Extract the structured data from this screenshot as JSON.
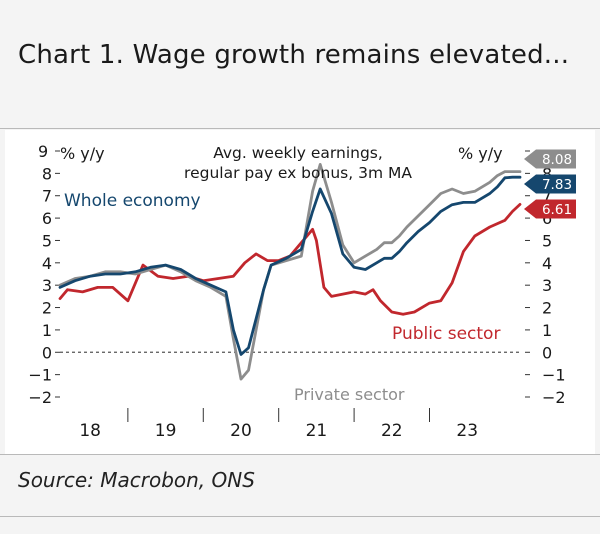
{
  "header": {
    "title": "Chart 1. Wage growth remains elevated..."
  },
  "footer": {
    "source": "Source: Macrobon, ONS"
  },
  "chart_data": {
    "type": "line",
    "title": "Avg. weekly earnings, regular pay ex bonus, 3m MA",
    "title_lines": [
      "Avg. weekly earnings,",
      "regular pay ex bonus, 3m MA"
    ],
    "ylabel_left": "% y/y",
    "ylabel_right": "% y/y",
    "ylim": [
      -2,
      9
    ],
    "yticks": [
      -2,
      -1,
      0,
      1,
      2,
      3,
      4,
      5,
      6,
      7,
      8,
      9
    ],
    "ytick_labels": [
      "−2",
      "−1",
      "0",
      "1",
      "2",
      "3",
      "4",
      "5",
      "6",
      "7",
      "8",
      "9"
    ],
    "xlim": [
      2017.6,
      2023.7
    ],
    "xtick_labels": [
      {
        "label": "18",
        "x": 2018.0
      },
      {
        "label": "19",
        "x": 2019.0
      },
      {
        "label": "20",
        "x": 2020.0
      },
      {
        "label": "21",
        "x": 2021.0
      },
      {
        "label": "22",
        "x": 2022.0
      },
      {
        "label": "23",
        "x": 2023.0
      }
    ],
    "x_separators": [
      2018.5,
      2019.5,
      2020.5,
      2021.5,
      2022.5
    ],
    "series": [
      {
        "name": "Whole economy",
        "color": "#15476e",
        "end_label": "7.83",
        "x": [
          2017.6,
          2017.8,
          2018.0,
          2018.2,
          2018.4,
          2018.6,
          2018.8,
          2019.0,
          2019.2,
          2019.4,
          2019.6,
          2019.8,
          2019.9,
          2020.0,
          2020.1,
          2020.2,
          2020.3,
          2020.4,
          2020.6,
          2020.8,
          2020.95,
          2021.05,
          2021.2,
          2021.35,
          2021.5,
          2021.65,
          2021.8,
          2021.9,
          2022.0,
          2022.1,
          2022.2,
          2022.35,
          2022.5,
          2022.65,
          2022.8,
          2022.95,
          2023.1,
          2023.3,
          2023.4,
          2023.5,
          2023.6,
          2023.7
        ],
        "values": [
          2.9,
          3.2,
          3.4,
          3.5,
          3.5,
          3.6,
          3.8,
          3.9,
          3.7,
          3.3,
          3.0,
          2.7,
          1.0,
          -0.1,
          0.2,
          1.5,
          2.8,
          3.9,
          4.2,
          4.6,
          6.3,
          7.3,
          6.2,
          4.4,
          3.8,
          3.7,
          4.0,
          4.2,
          4.2,
          4.5,
          4.9,
          5.4,
          5.8,
          6.3,
          6.6,
          6.7,
          6.7,
          7.1,
          7.4,
          7.8,
          7.83,
          7.83
        ]
      },
      {
        "name": "Private sector",
        "color": "#8d8d8d",
        "end_label": "8.08",
        "x": [
          2017.6,
          2017.8,
          2018.0,
          2018.2,
          2018.4,
          2018.6,
          2018.8,
          2019.0,
          2019.2,
          2019.4,
          2019.6,
          2019.8,
          2019.9,
          2020.0,
          2020.1,
          2020.2,
          2020.3,
          2020.4,
          2020.6,
          2020.8,
          2020.95,
          2021.05,
          2021.2,
          2021.35,
          2021.5,
          2021.65,
          2021.8,
          2021.9,
          2022.0,
          2022.1,
          2022.2,
          2022.35,
          2022.5,
          2022.65,
          2022.8,
          2022.95,
          2023.1,
          2023.3,
          2023.4,
          2023.5,
          2023.6,
          2023.7
        ],
        "values": [
          3.0,
          3.3,
          3.4,
          3.6,
          3.6,
          3.5,
          3.7,
          3.9,
          3.6,
          3.2,
          2.9,
          2.5,
          0.6,
          -1.2,
          -0.8,
          1.0,
          2.8,
          3.9,
          4.1,
          4.3,
          7.2,
          8.4,
          6.7,
          4.8,
          4.0,
          4.3,
          4.6,
          4.9,
          4.9,
          5.2,
          5.6,
          6.1,
          6.6,
          7.1,
          7.3,
          7.1,
          7.2,
          7.6,
          7.9,
          8.08,
          8.08,
          8.08
        ]
      },
      {
        "name": "Public sector",
        "color": "#c1272d",
        "end_label": "6.61",
        "x": [
          2017.6,
          2017.7,
          2017.9,
          2018.1,
          2018.3,
          2018.5,
          2018.7,
          2018.9,
          2019.1,
          2019.3,
          2019.5,
          2019.7,
          2019.9,
          2020.05,
          2020.2,
          2020.35,
          2020.5,
          2020.65,
          2020.8,
          2020.85,
          2020.95,
          2021.0,
          2021.1,
          2021.2,
          2021.35,
          2021.5,
          2021.65,
          2021.75,
          2021.85,
          2022.0,
          2022.15,
          2022.3,
          2022.5,
          2022.65,
          2022.8,
          2022.95,
          2023.1,
          2023.3,
          2023.5,
          2023.6,
          2023.7
        ],
        "values": [
          2.4,
          2.8,
          2.7,
          2.9,
          2.9,
          2.3,
          3.9,
          3.4,
          3.3,
          3.4,
          3.2,
          3.3,
          3.4,
          4.0,
          4.4,
          4.1,
          4.1,
          4.3,
          4.9,
          5.1,
          5.5,
          5.0,
          2.9,
          2.5,
          2.6,
          2.7,
          2.6,
          2.8,
          2.3,
          1.8,
          1.7,
          1.8,
          2.2,
          2.3,
          3.1,
          4.5,
          5.2,
          5.6,
          5.9,
          6.3,
          6.61
        ]
      }
    ],
    "annotations": [
      {
        "text": "Whole economy",
        "series": "Whole economy"
      },
      {
        "text": "Public sector",
        "series": "Public sector"
      },
      {
        "text": "Private sector",
        "series": "Private sector"
      }
    ]
  }
}
